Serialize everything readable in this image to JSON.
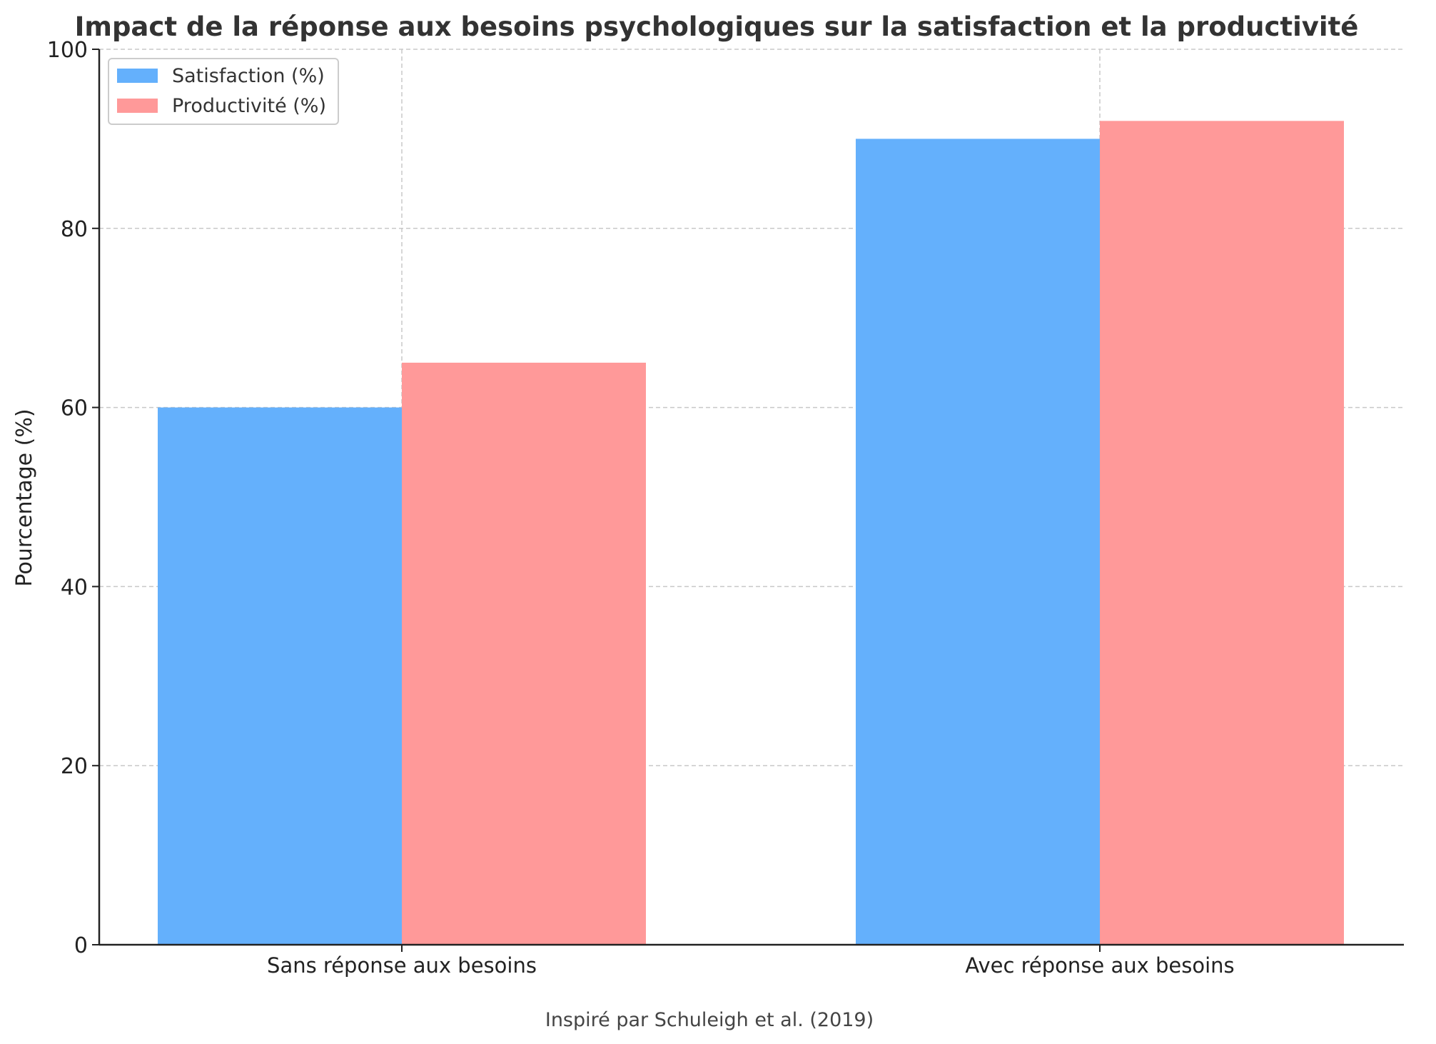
{
  "chart_data": {
    "type": "bar",
    "title": "Impact de la réponse aux besoins psychologiques sur la satisfaction et la productivité",
    "xlabel": "",
    "ylabel": "Pourcentage (%)",
    "caption": "Inspiré par Schuleigh et al. (2019)",
    "categories": [
      "Sans réponse aux besoins",
      "Avec réponse aux besoins"
    ],
    "series": [
      {
        "name": "Satisfaction (%)",
        "values": [
          60,
          90
        ],
        "color": "#64b0fc"
      },
      {
        "name": "Productivité (%)",
        "values": [
          65,
          92
        ],
        "color": "#ff9999"
      }
    ],
    "ylim": [
      0,
      100
    ],
    "yticks": [
      0,
      20,
      40,
      60,
      80,
      100
    ],
    "grid": true,
    "legend_position": "top-left"
  }
}
